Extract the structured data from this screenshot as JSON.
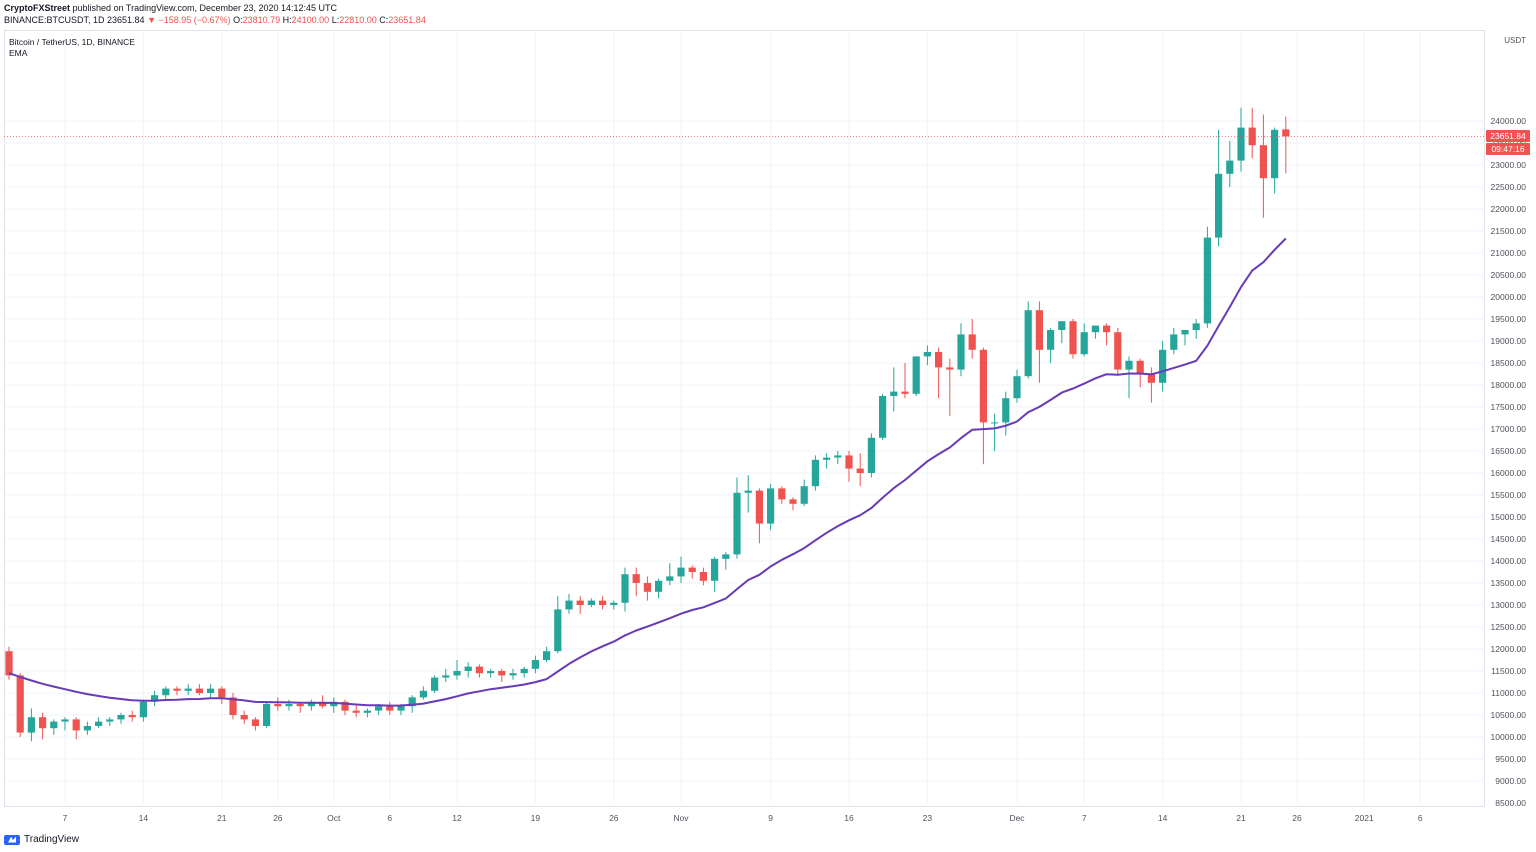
{
  "header": {
    "publisher": "CryptoFXStreet",
    "published_text": "published on TradingView.com, December 23, 2020 14:12:45 UTC",
    "symbol_line_prefix": "BINANCE:BTCUSDT, 1D 23651.84",
    "change": "▼ −158.95 (−0.67%)",
    "o_label": "O:",
    "o_value": "23810.79",
    "h_label": "H:",
    "h_value": "24100.00",
    "l_label": "L:",
    "l_value": "22810.00",
    "c_label": "C:",
    "c_value": "23651.84"
  },
  "legend": {
    "title": "Bitcoin / TetherUS, 1D, BINANCE",
    "indicator": "EMA"
  },
  "price_axis": {
    "unit": "USDT",
    "current_price": "23651.84",
    "countdown": "09:47:16"
  },
  "footer": {
    "brand": "TradingView"
  },
  "colors": {
    "up": "#26a69a",
    "down": "#ef5350",
    "ema": "#673ab7",
    "grid": "#f0f3fa",
    "axis_text": "#50535e"
  },
  "chart_data": {
    "type": "candlestick",
    "title": "Bitcoin / TetherUS, 1D, BINANCE",
    "ylim": [
      8300,
      24100
    ],
    "y_ticks": [
      8500,
      9000,
      9500,
      10000,
      10500,
      11000,
      11500,
      12000,
      12500,
      13000,
      13500,
      14000,
      14500,
      15000,
      15500,
      16000,
      16500,
      17000,
      17500,
      18000,
      18500,
      19000,
      19500,
      20000,
      20500,
      21000,
      21500,
      22000,
      22500,
      23000,
      23500,
      24000
    ],
    "x_ticks": [
      {
        "label": "7",
        "i": 5
      },
      {
        "label": "14",
        "i": 12
      },
      {
        "label": "21",
        "i": 19
      },
      {
        "label": "26",
        "i": 24
      },
      {
        "label": "Oct",
        "i": 29
      },
      {
        "label": "6",
        "i": 34
      },
      {
        "label": "12",
        "i": 40
      },
      {
        "label": "19",
        "i": 47
      },
      {
        "label": "26",
        "i": 54
      },
      {
        "label": "Nov",
        "i": 60
      },
      {
        "label": "9",
        "i": 68
      },
      {
        "label": "16",
        "i": 75
      },
      {
        "label": "23",
        "i": 82
      },
      {
        "label": "Dec",
        "i": 90
      },
      {
        "label": "7",
        "i": 96
      },
      {
        "label": "14",
        "i": 103
      },
      {
        "label": "21",
        "i": 110
      },
      {
        "label": "26",
        "i": 115
      },
      {
        "label": "2021",
        "i": 121
      },
      {
        "label": "6",
        "i": 126
      }
    ],
    "candles": [
      [
        11950,
        12050,
        11300,
        11400
      ],
      [
        11400,
        11450,
        10000,
        10100
      ],
      [
        10100,
        10650,
        9900,
        10450
      ],
      [
        10450,
        10550,
        9950,
        10200
      ],
      [
        10200,
        10400,
        10050,
        10350
      ],
      [
        10350,
        10450,
        10150,
        10400
      ],
      [
        10400,
        10450,
        9950,
        10150
      ],
      [
        10150,
        10350,
        10050,
        10250
      ],
      [
        10250,
        10450,
        10200,
        10350
      ],
      [
        10350,
        10450,
        10250,
        10400
      ],
      [
        10400,
        10550,
        10300,
        10500
      ],
      [
        10500,
        10600,
        10350,
        10450
      ],
      [
        10450,
        10850,
        10350,
        10800
      ],
      [
        10800,
        11050,
        10700,
        10950
      ],
      [
        10950,
        11150,
        10850,
        11100
      ],
      [
        11100,
        11150,
        10950,
        11050
      ],
      [
        11050,
        11200,
        10950,
        11100
      ],
      [
        11100,
        11200,
        10950,
        11000
      ],
      [
        11000,
        11200,
        10900,
        11100
      ],
      [
        11100,
        11150,
        10750,
        10900
      ],
      [
        10900,
        11000,
        10400,
        10500
      ],
      [
        10500,
        10600,
        10300,
        10400
      ],
      [
        10400,
        10450,
        10150,
        10250
      ],
      [
        10250,
        10800,
        10200,
        10750
      ],
      [
        10750,
        10900,
        10600,
        10700
      ],
      [
        10700,
        10850,
        10600,
        10750
      ],
      [
        10750,
        10800,
        10550,
        10700
      ],
      [
        10700,
        10850,
        10600,
        10800
      ],
      [
        10800,
        10950,
        10650,
        10700
      ],
      [
        10700,
        10900,
        10550,
        10800
      ],
      [
        10800,
        10850,
        10500,
        10600
      ],
      [
        10600,
        10750,
        10450,
        10550
      ],
      [
        10550,
        10650,
        10450,
        10600
      ],
      [
        10600,
        10750,
        10500,
        10700
      ],
      [
        10700,
        10800,
        10500,
        10600
      ],
      [
        10600,
        10750,
        10500,
        10700
      ],
      [
        10700,
        10950,
        10550,
        10900
      ],
      [
        10900,
        11150,
        10850,
        11050
      ],
      [
        11050,
        11400,
        11000,
        11350
      ],
      [
        11350,
        11550,
        11250,
        11400
      ],
      [
        11400,
        11750,
        11300,
        11500
      ],
      [
        11500,
        11700,
        11350,
        11600
      ],
      [
        11600,
        11650,
        11350,
        11450
      ],
      [
        11450,
        11550,
        11350,
        11500
      ],
      [
        11500,
        11550,
        11250,
        11400
      ],
      [
        11400,
        11550,
        11300,
        11450
      ],
      [
        11450,
        11600,
        11350,
        11550
      ],
      [
        11550,
        11850,
        11450,
        11750
      ],
      [
        11750,
        12050,
        11700,
        11950
      ],
      [
        11950,
        13200,
        11900,
        12900
      ],
      [
        12900,
        13250,
        12800,
        13100
      ],
      [
        13100,
        13200,
        12800,
        13000
      ],
      [
        13000,
        13150,
        12950,
        13100
      ],
      [
        13100,
        13200,
        12900,
        13000
      ],
      [
        13000,
        13100,
        12900,
        13050
      ],
      [
        13050,
        13850,
        12850,
        13700
      ],
      [
        13700,
        13850,
        13200,
        13500
      ],
      [
        13500,
        13650,
        13100,
        13300
      ],
      [
        13300,
        13600,
        13150,
        13550
      ],
      [
        13550,
        13950,
        13450,
        13650
      ],
      [
        13650,
        14100,
        13500,
        13850
      ],
      [
        13850,
        13900,
        13600,
        13750
      ],
      [
        13750,
        13850,
        13450,
        13550
      ],
      [
        13550,
        14100,
        13300,
        14050
      ],
      [
        14050,
        14200,
        13800,
        14150
      ],
      [
        14150,
        15900,
        14050,
        15550
      ],
      [
        15550,
        15950,
        15100,
        15600
      ],
      [
        15600,
        15650,
        14400,
        14850
      ],
      [
        14850,
        15750,
        14700,
        15650
      ],
      [
        15650,
        15700,
        15300,
        15400
      ],
      [
        15400,
        15450,
        15150,
        15300
      ],
      [
        15300,
        15850,
        15250,
        15700
      ],
      [
        15700,
        16400,
        15600,
        16300
      ],
      [
        16300,
        16450,
        16100,
        16350
      ],
      [
        16350,
        16500,
        16200,
        16400
      ],
      [
        16400,
        16500,
        15800,
        16100
      ],
      [
        16100,
        16450,
        15700,
        16000
      ],
      [
        16000,
        16900,
        15900,
        16800
      ],
      [
        16800,
        17800,
        16750,
        17750
      ],
      [
        17750,
        18400,
        17400,
        17850
      ],
      [
        17850,
        18500,
        17700,
        17800
      ],
      [
        17800,
        18650,
        17750,
        18650
      ],
      [
        18650,
        18900,
        18450,
        18750
      ],
      [
        18750,
        18850,
        17700,
        18400
      ],
      [
        18400,
        18600,
        17300,
        18350
      ],
      [
        18350,
        19400,
        18200,
        19150
      ],
      [
        19150,
        19500,
        18600,
        18800
      ],
      [
        18800,
        18850,
        16200,
        17150
      ],
      [
        17150,
        17350,
        16500,
        17150
      ],
      [
        17150,
        17850,
        16850,
        17700
      ],
      [
        17700,
        18350,
        17600,
        18200
      ],
      [
        18200,
        19900,
        18150,
        19700
      ],
      [
        19700,
        19900,
        18050,
        18800
      ],
      [
        18800,
        19300,
        18500,
        19250
      ],
      [
        19250,
        19450,
        18950,
        19450
      ],
      [
        19450,
        19500,
        18600,
        18700
      ],
      [
        18700,
        19400,
        18650,
        19200
      ],
      [
        19200,
        19350,
        19050,
        19350
      ],
      [
        19350,
        19400,
        18900,
        19200
      ],
      [
        19200,
        19300,
        18250,
        18350
      ],
      [
        18350,
        18650,
        17700,
        18550
      ],
      [
        18550,
        18600,
        17950,
        18250
      ],
      [
        18250,
        18400,
        17600,
        18050
      ],
      [
        18050,
        19000,
        17850,
        18800
      ],
      [
        18800,
        19300,
        18700,
        19150
      ],
      [
        19150,
        19250,
        18900,
        19250
      ],
      [
        19250,
        19500,
        19050,
        19400
      ],
      [
        19400,
        21600,
        19300,
        21350
      ],
      [
        21350,
        23800,
        21150,
        22800
      ],
      [
        22800,
        23550,
        22500,
        23100
      ],
      [
        23100,
        24300,
        22850,
        23850
      ],
      [
        23850,
        24300,
        23150,
        23450
      ],
      [
        23450,
        24150,
        21800,
        22700
      ],
      [
        22700,
        23850,
        22350,
        23800
      ],
      [
        23810,
        24100,
        22810,
        23650
      ]
    ],
    "ema": [
      11450,
      11365,
      11284,
      11210,
      11145,
      11086,
      11027,
      10975,
      10931,
      10893,
      10863,
      10834,
      10826,
      10828,
      10840,
      10848,
      10861,
      10864,
      10879,
      10880,
      10859,
      10831,
      10797,
      10794,
      10790,
      10786,
      10779,
      10780,
      10776,
      10775,
      10758,
      10738,
      10723,
      10721,
      10713,
      10715,
      10732,
      10758,
      10809,
      10862,
      10924,
      10990,
      11039,
      11087,
      11120,
      11154,
      11194,
      11247,
      11315,
      11488,
      11662,
      11810,
      11945,
      12061,
      12168,
      12309,
      12421,
      12510,
      12604,
      12699,
      12803,
      12887,
      12947,
      13048,
      13147,
      13361,
      13568,
      13687,
      13875,
      14028,
      14154,
      14294,
      14471,
      14640,
      14794,
      14925,
      15041,
      15205,
      15436,
      15656,
      15842,
      16054,
      16266,
      16429,
      16580,
      16794,
      16981,
      16998,
      17014,
      17074,
      17171,
      17382,
      17503,
      17661,
      17827,
      17921,
      18032,
      18153,
      18246,
      18235,
      18262,
      18259,
      18240,
      18311,
      18388,
      18463,
      18549,
      18895,
      19341,
      19773,
      20226,
      20600,
      20791,
      21073,
      21330
    ]
  }
}
